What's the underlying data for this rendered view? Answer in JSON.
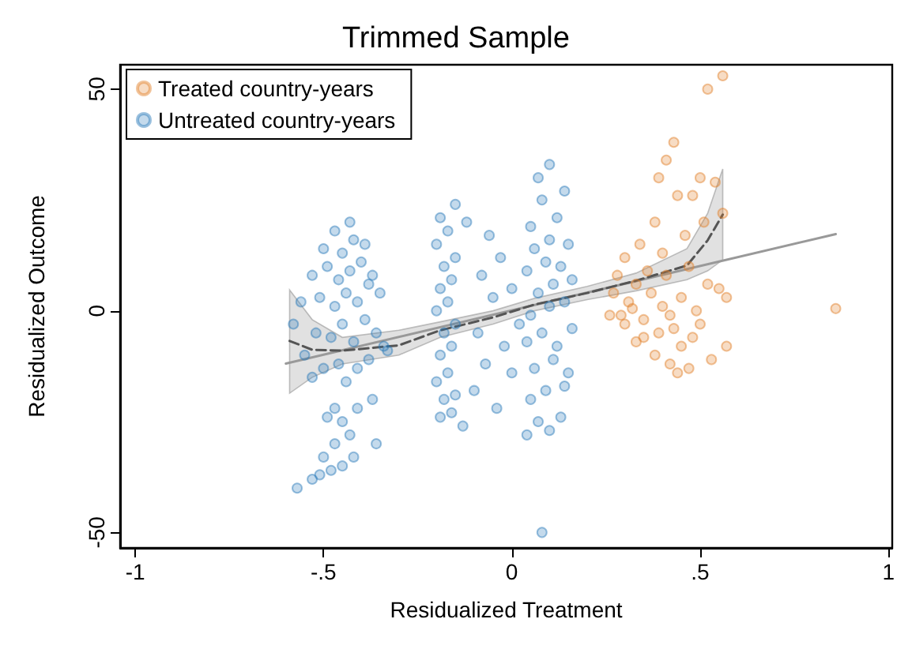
{
  "chart_data": {
    "type": "scatter",
    "title": "Trimmed Sample",
    "xlabel": "Residualized Treatment",
    "ylabel": "Residualized Outcome",
    "xlim": [
      -1.04,
      1.01
    ],
    "ylim": [
      -53.5,
      55.5
    ],
    "xticks": [
      {
        "value": -1,
        "label": "-1"
      },
      {
        "value": -0.5,
        "label": "-.5"
      },
      0,
      {
        "value": 0.5,
        "label": ".5"
      },
      1
    ],
    "yticks": [
      -50,
      0,
      50
    ],
    "grid": false,
    "legend": "top left",
    "marker": "circle",
    "series": [
      {
        "name": "Treated country-years",
        "color": "#e1812c",
        "x": [
          0.26,
          0.27,
          0.28,
          0.3,
          0.3,
          0.31,
          0.33,
          0.33,
          0.34,
          0.35,
          0.36,
          0.37,
          0.38,
          0.38,
          0.39,
          0.4,
          0.4,
          0.41,
          0.41,
          0.42,
          0.43,
          0.43,
          0.44,
          0.45,
          0.45,
          0.46,
          0.47,
          0.47,
          0.48,
          0.49,
          0.5,
          0.5,
          0.51,
          0.52,
          0.53,
          0.54,
          0.55,
          0.56,
          0.57,
          0.57,
          0.52,
          0.56,
          0.86,
          0.29,
          0.35,
          0.44,
          0.39,
          0.32,
          0.42,
          0.48
        ],
        "values": [
          -1,
          4,
          8,
          12,
          -3,
          2,
          6,
          -7,
          15,
          -2,
          9,
          4,
          -10,
          20,
          -5,
          1,
          13,
          34,
          8,
          -12,
          -4,
          38,
          26,
          3,
          -8,
          17,
          -13,
          10,
          26,
          0,
          -3,
          30,
          20,
          6,
          -11,
          29,
          5,
          22,
          -8,
          3,
          50,
          53,
          0.5,
          -1,
          -6,
          -14,
          30,
          0.5,
          -1,
          -6
        ]
      },
      {
        "name": "Untreated country-years",
        "color": "#2b7bba",
        "x": [
          -0.57,
          -0.53,
          -0.51,
          -0.48,
          -0.45,
          -0.47,
          -0.5,
          -0.42,
          -0.43,
          -0.49,
          -0.47,
          -0.45,
          -0.41,
          -0.37,
          -0.36,
          -0.53,
          -0.55,
          -0.5,
          -0.46,
          -0.44,
          -0.41,
          -0.38,
          -0.34,
          -0.58,
          -0.52,
          -0.48,
          -0.45,
          -0.42,
          -0.39,
          -0.36,
          -0.33,
          -0.56,
          -0.51,
          -0.47,
          -0.44,
          -0.41,
          -0.38,
          -0.35,
          -0.53,
          -0.49,
          -0.46,
          -0.43,
          -0.4,
          -0.37,
          -0.5,
          -0.45,
          -0.42,
          -0.39,
          -0.47,
          -0.43,
          -0.19,
          -0.16,
          -0.18,
          -0.15,
          -0.2,
          -0.17,
          -0.19,
          -0.16,
          -0.18,
          -0.15,
          -0.2,
          -0.17,
          -0.19,
          -0.16,
          -0.18,
          -0.15,
          -0.2,
          -0.17,
          -0.19,
          -0.15,
          -0.13,
          -0.12,
          -0.1,
          -0.07,
          -0.04,
          -0.09,
          -0.05,
          -0.02,
          -0.08,
          -0.03,
          0,
          -0.06,
          0,
          0.02,
          0.04,
          0.07,
          0.1,
          0.13,
          0.05,
          0.09,
          0.14,
          0.06,
          0.11,
          0.15,
          0.04,
          0.08,
          0.12,
          0.16,
          0.05,
          0.1,
          0.14,
          0.07,
          0.11,
          0.16,
          0.04,
          0.09,
          0.13,
          0.06,
          0.1,
          0.15,
          0.05,
          0.12,
          0.08,
          0.14,
          0.07,
          0.1,
          0.08
        ],
        "values": [
          -40,
          -38,
          -37,
          -36,
          -35,
          -30,
          -33,
          -33,
          -28,
          -24,
          -22,
          -25,
          -22,
          -20,
          -30,
          -15,
          -10,
          -13,
          -12,
          -16,
          -13,
          -11,
          -8,
          -3,
          -5,
          -6,
          -3,
          -7,
          -2,
          -5,
          -9,
          2,
          3,
          1,
          4,
          2,
          6,
          4,
          8,
          10,
          7,
          9,
          11,
          8,
          14,
          13,
          16,
          15,
          18,
          20,
          -24,
          -23,
          -20,
          -19,
          -16,
          -14,
          -10,
          -8,
          -5,
          -3,
          0,
          2,
          5,
          7,
          10,
          12,
          15,
          18,
          21,
          24,
          -26,
          20,
          -18,
          -12,
          -22,
          -5,
          3,
          -8,
          8,
          12,
          -14,
          17,
          5,
          -3,
          -28,
          -25,
          -27,
          -24,
          -20,
          -18,
          -17,
          -13,
          -11,
          -14,
          -7,
          -5,
          -8,
          -4,
          -1,
          1,
          2,
          4,
          6,
          7,
          9,
          11,
          10,
          14,
          16,
          15,
          19,
          21,
          25,
          27,
          30,
          33,
          -50
        ]
      },
      {
        "type": "line",
        "color": "#999999",
        "line_style": "solid",
        "marker": "none",
        "x": [
          -0.6,
          0.86
        ],
        "values": [
          -11.9,
          17.3
        ]
      },
      {
        "type": "line",
        "color": "#555555",
        "line_style": "dashed",
        "marker": "none",
        "x": [
          -0.59,
          -0.53,
          -0.45,
          -0.3,
          -0.19,
          -0.05,
          0.06,
          0.2,
          0.33,
          0.465,
          0.52,
          0.56
        ],
        "values": [
          -6.8,
          -8.8,
          -9,
          -7.8,
          -4.4,
          -1.5,
          1.4,
          4,
          6.8,
          10.2,
          15.9,
          21.7
        ],
        "lower": [
          -18.6,
          -15,
          -12,
          -10,
          -6,
          -3,
          0,
          2.5,
          4.5,
          7,
          9,
          11.5
        ],
        "upper": [
          4.7,
          -2,
          -6,
          -4.4,
          -2.5,
          0,
          2.8,
          5.5,
          8.5,
          14,
          22,
          32
        ]
      }
    ]
  }
}
